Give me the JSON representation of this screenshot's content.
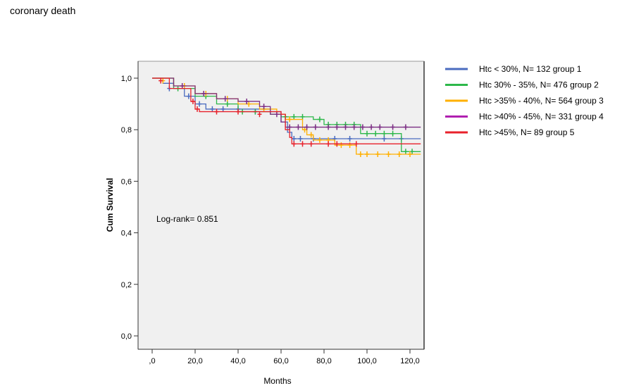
{
  "title": "coronary death",
  "chart_data": {
    "type": "line",
    "subtype": "kaplan-meier step",
    "xlabel": "Months",
    "ylabel": "Cum Survival",
    "xlim": [
      -6,
      126
    ],
    "ylim": [
      -0.07,
      1.07
    ],
    "xticks": [
      0,
      20,
      40,
      60,
      80,
      100,
      120
    ],
    "xtick_labels": [
      ",0",
      "20,0",
      "40,0",
      "60,0",
      "80,0",
      "100,0",
      "120,0"
    ],
    "yticks": [
      0,
      0.2,
      0.4,
      0.6,
      0.8,
      1.0
    ],
    "ytick_labels": [
      "0,0",
      "0,2",
      "0,4",
      "0,6",
      "0,8",
      "1,0"
    ],
    "annotation": "Log-rank= 0.851",
    "legend_position": "right",
    "grid": false,
    "background": "#f0f0f0",
    "series": [
      {
        "name": "Htc < 30%, N= 132 group 1",
        "color": "#4a6bbf",
        "end": 125,
        "steps": [
          [
            0,
            1
          ],
          [
            5,
            0.98
          ],
          [
            10,
            0.96
          ],
          [
            15,
            0.93
          ],
          [
            20,
            0.9
          ],
          [
            25,
            0.88
          ],
          [
            55,
            0.87
          ],
          [
            60,
            0.83
          ],
          [
            63,
            0.79
          ],
          [
            65,
            0.765
          ]
        ],
        "censored": [
          [
            8,
            0.96
          ],
          [
            17,
            0.93
          ],
          [
            22,
            0.9
          ],
          [
            28,
            0.88
          ],
          [
            33,
            0.88
          ],
          [
            40,
            0.88
          ],
          [
            48,
            0.87
          ],
          [
            66,
            0.765
          ],
          [
            69,
            0.765
          ],
          [
            75,
            0.765
          ],
          [
            85,
            0.765
          ],
          [
            92,
            0.765
          ],
          [
            108,
            0.765
          ],
          [
            116,
            0.765
          ]
        ]
      },
      {
        "name": "Htc 30% - 35%, N= 476 group 2",
        "color": "#2db84a",
        "end": 125,
        "steps": [
          [
            0,
            1
          ],
          [
            10,
            0.96
          ],
          [
            20,
            0.93
          ],
          [
            30,
            0.9
          ],
          [
            40,
            0.87
          ],
          [
            55,
            0.86
          ],
          [
            60,
            0.85
          ],
          [
            75,
            0.84
          ],
          [
            80,
            0.82
          ],
          [
            97,
            0.785
          ],
          [
            116,
            0.715
          ]
        ],
        "censored": [
          [
            12,
            0.96
          ],
          [
            25,
            0.93
          ],
          [
            35,
            0.9
          ],
          [
            42,
            0.87
          ],
          [
            48,
            0.87
          ],
          [
            62,
            0.85
          ],
          [
            66,
            0.85
          ],
          [
            70,
            0.85
          ],
          [
            78,
            0.84
          ],
          [
            82,
            0.82
          ],
          [
            86,
            0.82
          ],
          [
            90,
            0.82
          ],
          [
            94,
            0.82
          ],
          [
            100,
            0.785
          ],
          [
            104,
            0.785
          ],
          [
            108,
            0.785
          ],
          [
            112,
            0.785
          ],
          [
            118,
            0.715
          ],
          [
            121,
            0.715
          ]
        ]
      },
      {
        "name": "Htc >35% - 40%, N= 564 group 3",
        "color": "#ffb000",
        "end": 125,
        "steps": [
          [
            0,
            1
          ],
          [
            10,
            0.97
          ],
          [
            20,
            0.94
          ],
          [
            30,
            0.92
          ],
          [
            40,
            0.9
          ],
          [
            50,
            0.88
          ],
          [
            58,
            0.86
          ],
          [
            62,
            0.84
          ],
          [
            70,
            0.8
          ],
          [
            72,
            0.78
          ],
          [
            75,
            0.76
          ],
          [
            85,
            0.74
          ],
          [
            95,
            0.705
          ]
        ],
        "censored": [
          [
            5,
            0.99
          ],
          [
            15,
            0.97
          ],
          [
            25,
            0.94
          ],
          [
            35,
            0.92
          ],
          [
            45,
            0.9
          ],
          [
            52,
            0.88
          ],
          [
            64,
            0.84
          ],
          [
            71,
            0.8
          ],
          [
            74,
            0.78
          ],
          [
            78,
            0.76
          ],
          [
            82,
            0.76
          ],
          [
            88,
            0.74
          ],
          [
            92,
            0.74
          ],
          [
            97,
            0.705
          ],
          [
            100,
            0.705
          ],
          [
            105,
            0.705
          ],
          [
            110,
            0.705
          ],
          [
            115,
            0.705
          ],
          [
            120,
            0.705
          ]
        ]
      },
      {
        "name": "Htc >40% - 45%, N= 331 group 4",
        "color": "#7b2d83",
        "legend_color": "#b020b0",
        "end": 125,
        "steps": [
          [
            0,
            1
          ],
          [
            10,
            0.97
          ],
          [
            20,
            0.94
          ],
          [
            30,
            0.92
          ],
          [
            40,
            0.91
          ],
          [
            50,
            0.89
          ],
          [
            55,
            0.86
          ],
          [
            60,
            0.83
          ],
          [
            62,
            0.81
          ]
        ],
        "censored": [
          [
            14,
            0.97
          ],
          [
            24,
            0.94
          ],
          [
            34,
            0.92
          ],
          [
            44,
            0.91
          ],
          [
            52,
            0.89
          ],
          [
            58,
            0.86
          ],
          [
            64,
            0.81
          ],
          [
            68,
            0.81
          ],
          [
            72,
            0.81
          ],
          [
            76,
            0.81
          ],
          [
            82,
            0.81
          ],
          [
            86,
            0.81
          ],
          [
            90,
            0.81
          ],
          [
            94,
            0.81
          ],
          [
            98,
            0.81
          ],
          [
            102,
            0.81
          ],
          [
            106,
            0.81
          ],
          [
            112,
            0.81
          ],
          [
            118,
            0.81
          ]
        ]
      },
      {
        "name": "Htc >45%, N= 89 group 5",
        "color": "#e8212b",
        "end": 125,
        "steps": [
          [
            0,
            1
          ],
          [
            8,
            0.96
          ],
          [
            18,
            0.91
          ],
          [
            20,
            0.88
          ],
          [
            22,
            0.87
          ],
          [
            60,
            0.86
          ],
          [
            62,
            0.8
          ],
          [
            64,
            0.77
          ],
          [
            65,
            0.745
          ]
        ],
        "censored": [
          [
            4,
            0.99
          ],
          [
            19,
            0.91
          ],
          [
            21,
            0.88
          ],
          [
            30,
            0.87
          ],
          [
            40,
            0.87
          ],
          [
            50,
            0.86
          ],
          [
            66,
            0.745
          ],
          [
            70,
            0.745
          ],
          [
            74,
            0.745
          ],
          [
            82,
            0.745
          ],
          [
            86,
            0.745
          ],
          [
            95,
            0.745
          ]
        ]
      }
    ]
  }
}
